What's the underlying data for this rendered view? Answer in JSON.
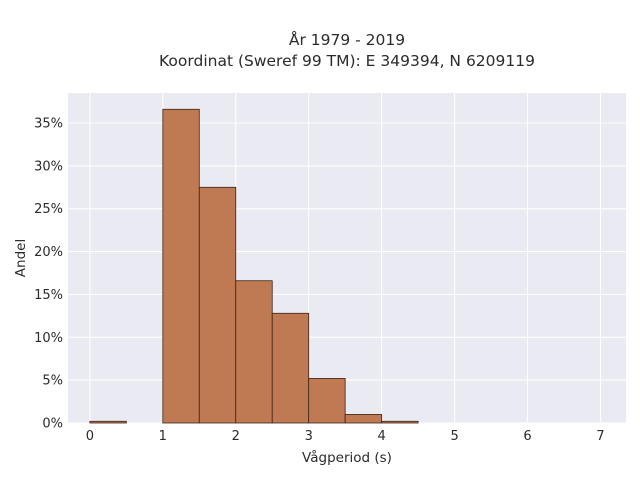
{
  "chart_data": {
    "type": "bar",
    "title_lines": [
      "År 1979 - 2019",
      "Koordinat (Sweref 99 TM): E 349394, N 6209119"
    ],
    "xlabel": "Vågperiod (s)",
    "ylabel": "Andel",
    "xlim": [
      -0.3,
      7.35
    ],
    "ylim": [
      0,
      0.385
    ],
    "x_ticks": [
      0,
      1,
      2,
      3,
      4,
      5,
      6,
      7
    ],
    "x_tick_labels": [
      "0",
      "1",
      "2",
      "3",
      "4",
      "5",
      "6",
      "7"
    ],
    "y_ticks": [
      0,
      0.05,
      0.1,
      0.15,
      0.2,
      0.25,
      0.3,
      0.35
    ],
    "y_tick_labels": [
      "0%",
      "5%",
      "10%",
      "15%",
      "20%",
      "25%",
      "30%",
      "35%"
    ],
    "grid": true,
    "bins": [
      {
        "x0": 0.0,
        "x1": 0.5,
        "value": 0.002
      },
      {
        "x0": 0.5,
        "x1": 1.0,
        "value": 0.0
      },
      {
        "x0": 1.0,
        "x1": 1.5,
        "value": 0.366
      },
      {
        "x0": 1.5,
        "x1": 2.0,
        "value": 0.275
      },
      {
        "x0": 2.0,
        "x1": 2.5,
        "value": 0.166
      },
      {
        "x0": 2.5,
        "x1": 3.0,
        "value": 0.128
      },
      {
        "x0": 3.0,
        "x1": 3.5,
        "value": 0.052
      },
      {
        "x0": 3.5,
        "x1": 4.0,
        "value": 0.01
      },
      {
        "x0": 4.0,
        "x1": 4.5,
        "value": 0.002
      }
    ],
    "colors": {
      "bar_fill": "#c07a53",
      "bar_stroke": "#3b2418",
      "plot_bg": "#eaeaf2",
      "grid": "#ffffff"
    }
  }
}
